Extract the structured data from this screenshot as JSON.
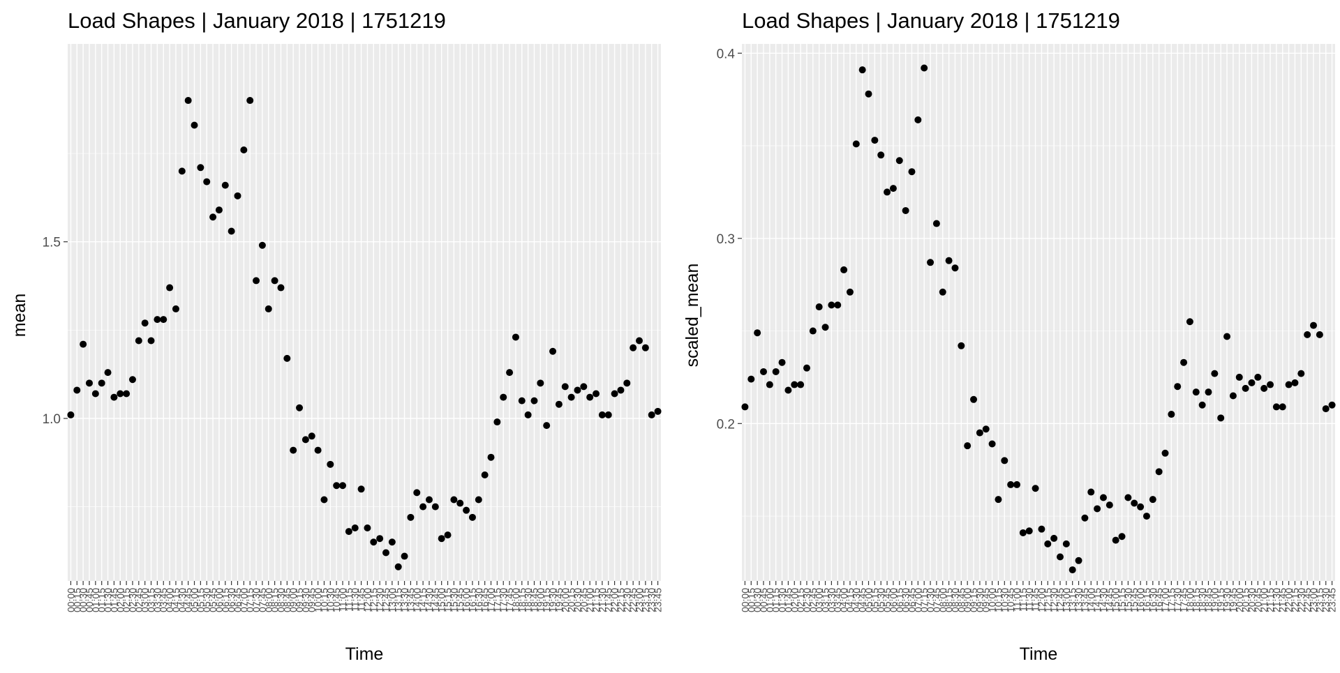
{
  "chart_data": [
    {
      "type": "scatter",
      "title": "Load Shapes | January 2018 |  1751219",
      "xlabel": "Time",
      "ylabel": "mean",
      "yticks": [
        1.0,
        1.5
      ],
      "ytick_labels": [
        "1.0",
        "1.5"
      ],
      "ylim": [
        0.54,
        2.06
      ],
      "grid": true,
      "point_color": "#000000",
      "x": [
        "00:00",
        "00:15",
        "00:30",
        "00:45",
        "01:00",
        "01:15",
        "01:30",
        "01:45",
        "02:00",
        "02:15",
        "02:30",
        "02:45",
        "03:00",
        "03:15",
        "03:30",
        "03:45",
        "04:00",
        "04:15",
        "04:30",
        "04:45",
        "05:00",
        "05:15",
        "05:30",
        "05:45",
        "06:00",
        "06:15",
        "06:30",
        "06:45",
        "07:00",
        "07:15",
        "07:30",
        "07:45",
        "08:00",
        "08:15",
        "08:30",
        "08:45",
        "09:00",
        "09:15",
        "09:30",
        "09:45",
        "10:00",
        "10:15",
        "10:30",
        "10:45",
        "11:00",
        "11:15",
        "11:30",
        "11:45",
        "12:00",
        "12:15",
        "12:30",
        "12:45",
        "13:00",
        "13:15",
        "13:30",
        "13:45",
        "14:00",
        "14:15",
        "14:30",
        "14:45",
        "15:00",
        "15:15",
        "15:30",
        "15:45",
        "16:00",
        "16:15",
        "16:30",
        "16:45",
        "17:00",
        "17:15",
        "17:30",
        "17:45",
        "18:00",
        "18:15",
        "18:30",
        "18:45",
        "19:00",
        "19:15",
        "19:30",
        "19:45",
        "20:00",
        "20:15",
        "20:30",
        "20:45",
        "21:00",
        "21:15",
        "21:30",
        "21:45",
        "22:00",
        "22:15",
        "22:30",
        "22:45",
        "23:00",
        "23:15",
        "23:30",
        "23:45"
      ],
      "values": [
        1.01,
        1.08,
        1.21,
        1.1,
        1.07,
        1.1,
        1.13,
        1.06,
        1.07,
        1.07,
        1.11,
        1.22,
        1.27,
        1.22,
        1.28,
        1.28,
        1.37,
        1.31,
        1.7,
        1.9,
        1.83,
        1.71,
        1.67,
        1.57,
        1.59,
        1.66,
        1.53,
        1.63,
        1.76,
        1.9,
        1.39,
        1.49,
        1.31,
        1.39,
        1.37,
        1.17,
        0.91,
        1.03,
        0.94,
        0.95,
        0.91,
        0.77,
        0.87,
        0.81,
        0.81,
        0.68,
        0.69,
        0.8,
        0.69,
        0.65,
        0.66,
        0.62,
        0.65,
        0.58,
        0.61,
        0.72,
        0.79,
        0.75,
        0.77,
        0.75,
        0.66,
        0.67,
        0.77,
        0.76,
        0.74,
        0.72,
        0.77,
        0.84,
        0.89,
        0.99,
        1.06,
        1.13,
        1.23,
        1.05,
        1.01,
        1.05,
        1.1,
        0.98,
        1.19,
        1.04,
        1.09,
        1.06,
        1.08,
        1.09,
        1.06,
        1.07,
        1.01,
        1.01,
        1.07,
        1.08,
        1.1,
        1.2,
        1.22,
        1.2,
        1.01,
        1.02
      ]
    },
    {
      "type": "scatter",
      "title": "Load Shapes | January 2018 |  1751219",
      "xlabel": "Time",
      "ylabel": "scaled_mean",
      "yticks": [
        0.2,
        0.3,
        0.4
      ],
      "ytick_labels": [
        "0.2",
        "0.3",
        "0.4"
      ],
      "ylim": [
        0.115,
        0.405
      ],
      "grid": true,
      "point_color": "#000000",
      "x": [
        "00:00",
        "00:15",
        "00:30",
        "00:45",
        "01:00",
        "01:15",
        "01:30",
        "01:45",
        "02:00",
        "02:15",
        "02:30",
        "02:45",
        "03:00",
        "03:15",
        "03:30",
        "03:45",
        "04:00",
        "04:15",
        "04:30",
        "04:45",
        "05:00",
        "05:15",
        "05:30",
        "05:45",
        "06:00",
        "06:15",
        "06:30",
        "06:45",
        "07:00",
        "07:15",
        "07:30",
        "07:45",
        "08:00",
        "08:15",
        "08:30",
        "08:45",
        "09:00",
        "09:15",
        "09:30",
        "09:45",
        "10:00",
        "10:15",
        "10:30",
        "10:45",
        "11:00",
        "11:15",
        "11:30",
        "11:45",
        "12:00",
        "12:15",
        "12:30",
        "12:45",
        "13:00",
        "13:15",
        "13:30",
        "13:45",
        "14:00",
        "14:15",
        "14:30",
        "14:45",
        "15:00",
        "15:15",
        "15:30",
        "15:45",
        "16:00",
        "16:15",
        "16:30",
        "16:45",
        "17:00",
        "17:15",
        "17:30",
        "17:45",
        "18:00",
        "18:15",
        "18:30",
        "18:45",
        "19:00",
        "19:15",
        "19:30",
        "19:45",
        "20:00",
        "20:15",
        "20:30",
        "20:45",
        "21:00",
        "21:15",
        "21:30",
        "21:45",
        "22:00",
        "22:15",
        "22:30",
        "22:45",
        "23:00",
        "23:15",
        "23:30",
        "23:45"
      ],
      "values": [
        0.209,
        0.224,
        0.249,
        0.228,
        0.221,
        0.228,
        0.233,
        0.218,
        0.221,
        0.221,
        0.23,
        0.25,
        0.263,
        0.252,
        0.264,
        0.264,
        0.283,
        0.271,
        0.351,
        0.391,
        0.378,
        0.353,
        0.345,
        0.325,
        0.327,
        0.342,
        0.315,
        0.336,
        0.364,
        0.392,
        0.287,
        0.308,
        0.271,
        0.288,
        0.284,
        0.242,
        0.188,
        0.213,
        0.195,
        0.197,
        0.189,
        0.159,
        0.18,
        0.167,
        0.167,
        0.141,
        0.142,
        0.165,
        0.143,
        0.135,
        0.138,
        0.128,
        0.135,
        0.121,
        0.126,
        0.149,
        0.163,
        0.154,
        0.16,
        0.156,
        0.137,
        0.139,
        0.16,
        0.157,
        0.155,
        0.15,
        0.159,
        0.174,
        0.184,
        0.205,
        0.22,
        0.233,
        0.255,
        0.217,
        0.21,
        0.217,
        0.227,
        0.203,
        0.247,
        0.215,
        0.225,
        0.219,
        0.222,
        0.225,
        0.219,
        0.221,
        0.209,
        0.209,
        0.221,
        0.222,
        0.227,
        0.248,
        0.253,
        0.248,
        0.208,
        0.21
      ]
    }
  ]
}
